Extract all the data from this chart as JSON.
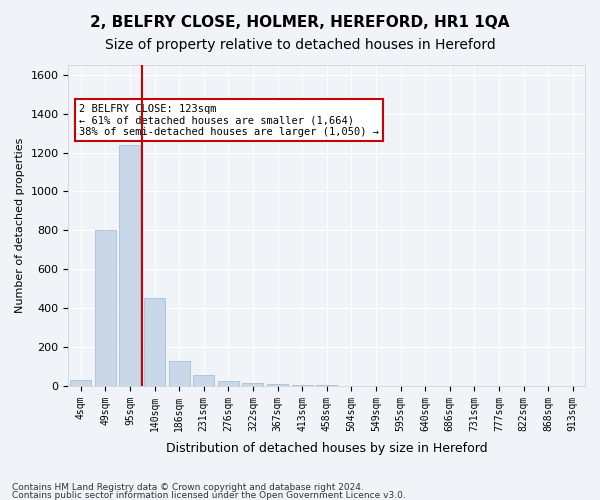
{
  "title": "2, BELFRY CLOSE, HOLMER, HEREFORD, HR1 1QA",
  "subtitle": "Size of property relative to detached houses in Hereford",
  "xlabel": "Distribution of detached houses by size in Hereford",
  "ylabel": "Number of detached properties",
  "bar_color": "#c8d8e8",
  "bar_edge_color": "#a0b8cc",
  "vline_color": "#cc0000",
  "vline_x": 2,
  "categories": [
    "4sqm",
    "49sqm",
    "95sqm",
    "140sqm",
    "186sqm",
    "231sqm",
    "276sqm",
    "322sqm",
    "367sqm",
    "413sqm",
    "458sqm",
    "504sqm",
    "549sqm",
    "595sqm",
    "640sqm",
    "686sqm",
    "731sqm",
    "777sqm",
    "822sqm",
    "868sqm",
    "913sqm"
  ],
  "values": [
    30,
    800,
    1240,
    450,
    130,
    55,
    25,
    15,
    8,
    5,
    3,
    1,
    0,
    0,
    0,
    0,
    0,
    0,
    0,
    0,
    0
  ],
  "ylim": [
    0,
    1650
  ],
  "yticks": [
    0,
    200,
    400,
    600,
    800,
    1000,
    1200,
    1400,
    1600
  ],
  "annotation_text": "2 BELFRY CLOSE: 123sqm\n← 61% of detached houses are smaller (1,664)\n38% of semi-detached houses are larger (1,050) →",
  "annotation_box_color": "#ffffff",
  "annotation_box_edge": "#cc0000",
  "footer1": "Contains HM Land Registry data © Crown copyright and database right 2024.",
  "footer2": "Contains public sector information licensed under the Open Government Licence v3.0.",
  "background_color": "#f0f4f8",
  "plot_background": "#f0f4f8",
  "title_fontsize": 11,
  "subtitle_fontsize": 10
}
